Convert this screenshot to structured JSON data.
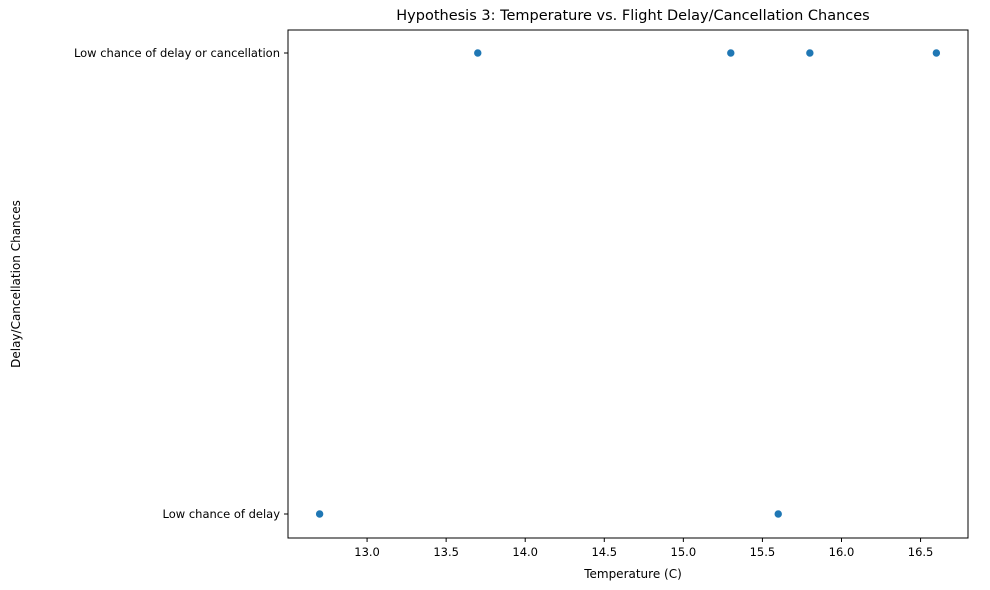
{
  "chart_data": {
    "type": "scatter",
    "title": "Hypothesis 3: Temperature vs. Flight Delay/Cancellation Chances",
    "xlabel": "Temperature (C)",
    "ylabel": "Delay/Cancellation Chances",
    "xlim": [
      12.5,
      16.8
    ],
    "x_ticks": [
      13.0,
      13.5,
      14.0,
      14.5,
      15.0,
      15.5,
      16.0,
      16.5
    ],
    "y_categories": [
      "Low chance of delay",
      "Low chance of delay or cancellation"
    ],
    "grid": false,
    "legend": "none",
    "colors": {
      "point": "#1f77b4"
    },
    "points": [
      {
        "x": 13.7,
        "y": "Low chance of delay or cancellation"
      },
      {
        "x": 15.3,
        "y": "Low chance of delay or cancellation"
      },
      {
        "x": 15.8,
        "y": "Low chance of delay or cancellation"
      },
      {
        "x": 16.6,
        "y": "Low chance of delay or cancellation"
      },
      {
        "x": 12.7,
        "y": "Low chance of delay"
      },
      {
        "x": 15.6,
        "y": "Low chance of delay"
      }
    ]
  }
}
